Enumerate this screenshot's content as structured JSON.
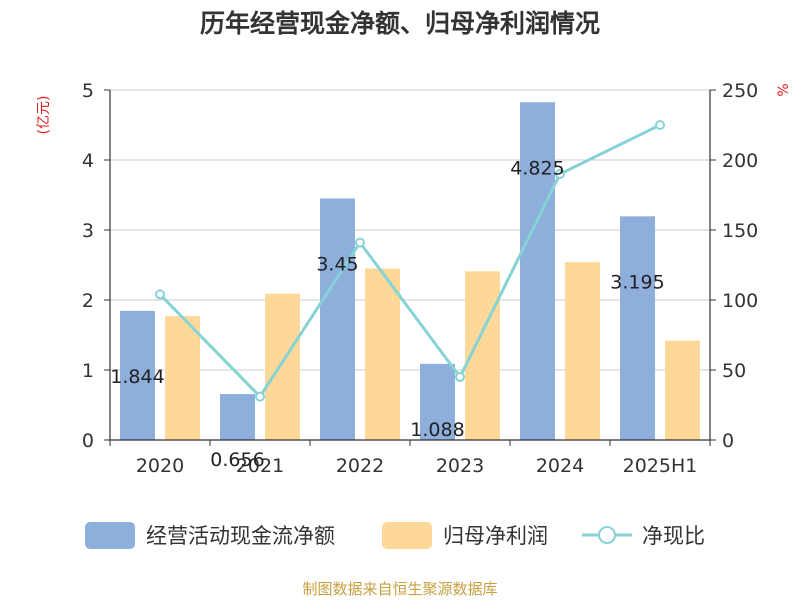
{
  "chart_data": {
    "type": "bar",
    "title": "历年经营现金净额、归母净利润情况",
    "categories": [
      "2020",
      "2021",
      "2022",
      "2023",
      "2024",
      "2025H1"
    ],
    "left_axis": {
      "unit": "(亿元)",
      "ylim": [
        0,
        5
      ],
      "ticks": [
        "0",
        "1",
        "2",
        "3",
        "4",
        "5"
      ]
    },
    "right_axis": {
      "unit": "%",
      "ylim": [
        0,
        250
      ],
      "ticks": [
        "0",
        "50",
        "100",
        "150",
        "200",
        "250"
      ]
    },
    "series": [
      {
        "name": "经营活动现金流净额",
        "type": "bar",
        "axis": "left",
        "color": "#8eaedb",
        "values": [
          1.844,
          0.656,
          3.45,
          1.088,
          4.825,
          3.195
        ],
        "labels": [
          "1.844",
          "0.656",
          "3.45",
          "1.088",
          "4.825",
          "3.195"
        ]
      },
      {
        "name": "归母净利润",
        "type": "bar",
        "axis": "left",
        "color": "#fdd898",
        "values": [
          1.77,
          2.09,
          2.45,
          2.41,
          2.54,
          1.42
        ]
      },
      {
        "name": "净现比",
        "type": "line",
        "axis": "right",
        "color": "#86d3d6",
        "values": [
          104,
          31,
          141,
          45,
          190,
          225
        ]
      }
    ],
    "grid": true,
    "legend_position": "bottom",
    "source": "制图数据来自恒生聚源数据库"
  }
}
